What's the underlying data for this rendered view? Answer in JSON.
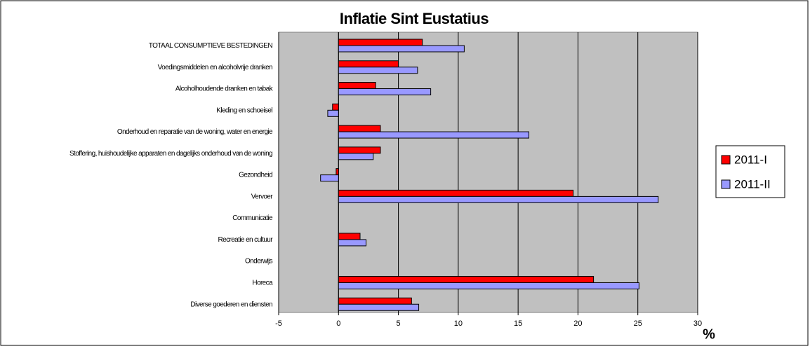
{
  "chart_data": {
    "type": "barh",
    "title": "Inflatie Sint Eustatius",
    "x_label": "%",
    "categories": [
      "TOTAAL CONSUMPTIEVE BESTEDINGEN",
      "Voedingsmiddelen en alcoholvrije dranken",
      "Alcoholhoudende dranken en tabak",
      "Kleding en schoeisel",
      "Onderhoud en reparatie van de woning, water en energie",
      "Stoffering, huishoudelijke apparaten en dagelijks onderhoud van de woning",
      "Gezondheid",
      "Vervoer",
      "Communicatie",
      "Recreatie en cultuur",
      "Onderwijs",
      "Horeca",
      "Diverse goederen en diensten"
    ],
    "series": [
      {
        "name": "2011-I",
        "color": "#ff0000",
        "values": [
          7.0,
          5.0,
          3.1,
          -0.5,
          3.5,
          3.5,
          -0.2,
          19.6,
          null,
          1.8,
          null,
          21.3,
          6.1
        ]
      },
      {
        "name": "2011-II",
        "color": "#9999ff",
        "values": [
          10.5,
          6.6,
          7.7,
          -0.9,
          15.9,
          2.9,
          -1.5,
          26.7,
          null,
          2.3,
          null,
          25.1,
          6.7
        ]
      }
    ],
    "xlim": [
      -5,
      30
    ],
    "xticks": [
      -5,
      0,
      5,
      10,
      15,
      20,
      25,
      30
    ],
    "grid": true,
    "legend": "right"
  }
}
